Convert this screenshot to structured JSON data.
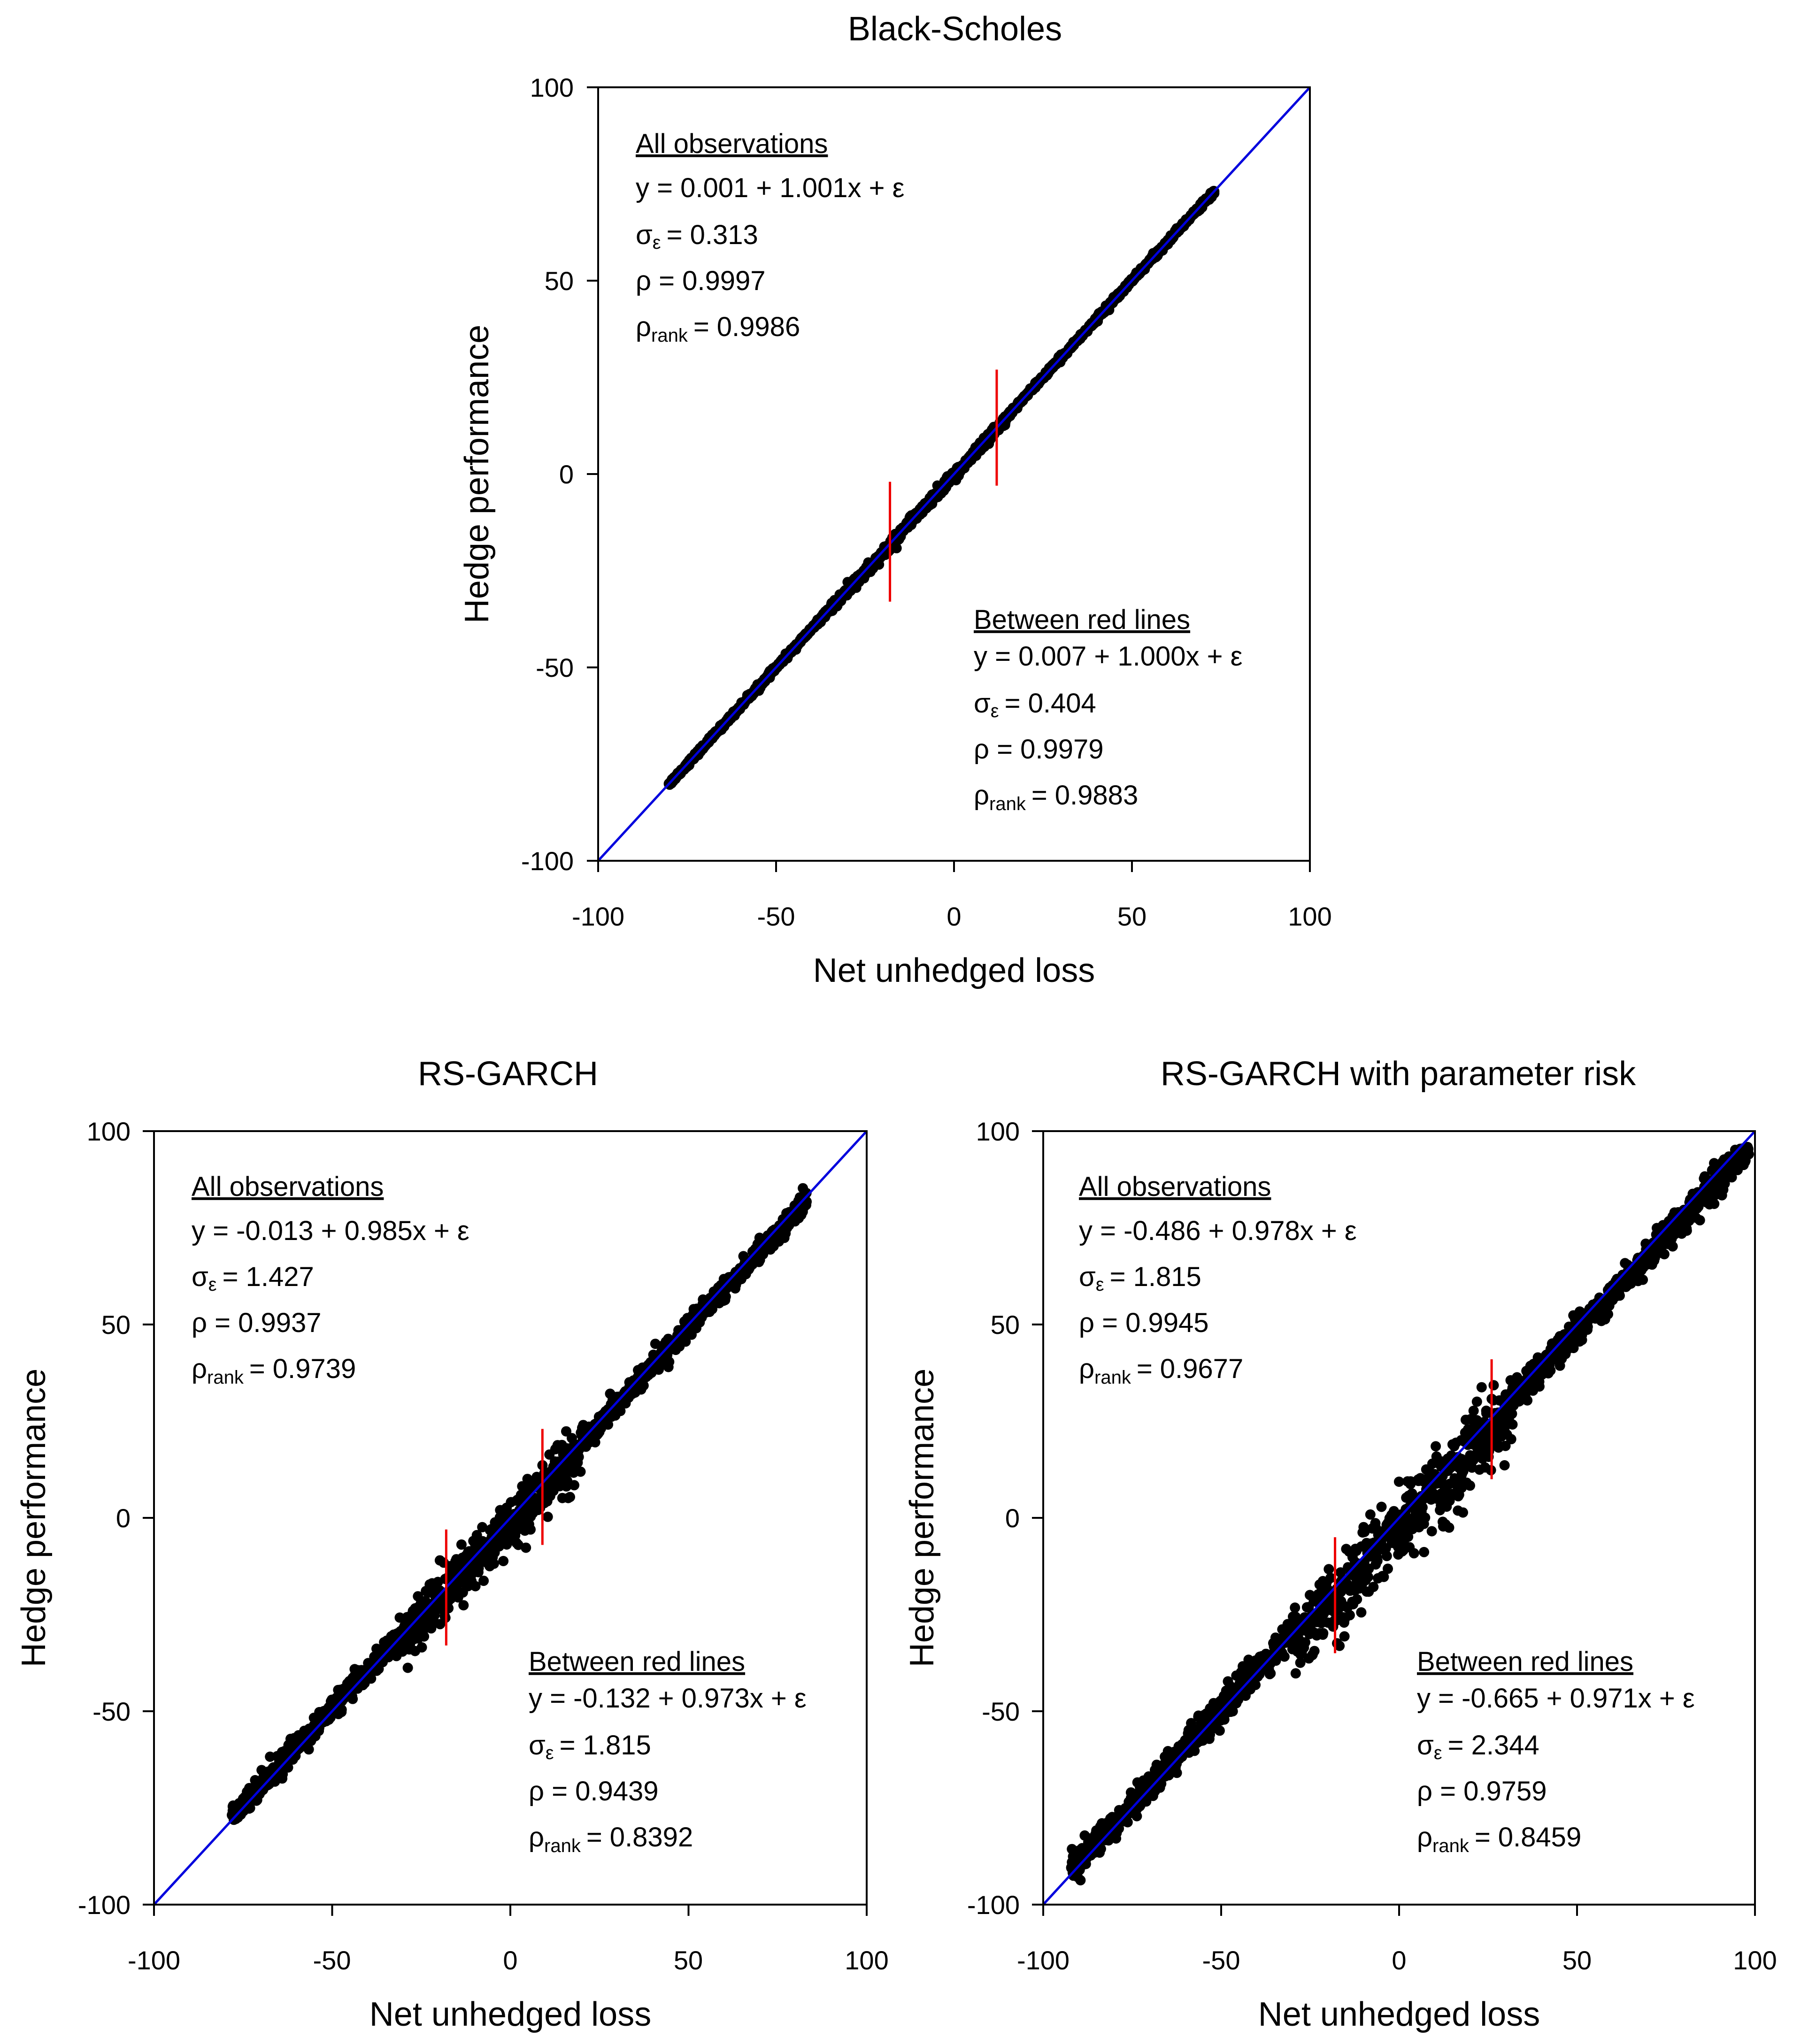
{
  "colors": {
    "diagonal": "#0000dd",
    "redlines": "#ee0000",
    "points": "#000000"
  },
  "chart_data": [
    {
      "type": "scatter",
      "title": "Black-Scholes",
      "xlabel": "Net unhedged loss",
      "ylabel": "Hedge performance",
      "xlim": [
        -100,
        100
      ],
      "ylim": [
        -100,
        100
      ],
      "xticks": [
        "-100",
        "-50",
        "0",
        "50",
        "100"
      ],
      "yticks": [
        "-100",
        "-50",
        "0",
        "50",
        "100"
      ],
      "diagonal": [
        [
          -100,
          -100
        ],
        [
          100,
          100
        ]
      ],
      "cloud": {
        "x_start": -80,
        "x_end": 73,
        "intercept": 0.001,
        "slope": 1.001,
        "band_inner": 0.6,
        "band_outer": 1.2,
        "outer_range": [
          -35,
          15
        ]
      },
      "red_lines": [
        {
          "x": -18,
          "y_range": [
            -33,
            -2
          ]
        },
        {
          "x": 12,
          "y_range": [
            -3,
            27
          ]
        }
      ],
      "annotations": {
        "all": {
          "heading": "All observations",
          "equation": "y = 0.001 + 1.001x + ε",
          "sigma": "σ",
          "sigma_sub": "ε",
          "sigma_value": "= 0.313",
          "rho": "ρ = 0.9997",
          "rho_rank": "ρ",
          "rho_rank_sub": "rank",
          "rho_rank_value": "= 0.9986"
        },
        "between": {
          "heading": "Between red lines",
          "equation": "y = 0.007 + 1.000x + ε",
          "sigma": "σ",
          "sigma_sub": "ε",
          "sigma_value": "= 0.404",
          "rho": "ρ = 0.9979",
          "rho_rank": "ρ",
          "rho_rank_sub": "rank",
          "rho_rank_value": "= 0.9883"
        }
      }
    },
    {
      "type": "scatter",
      "title": "RS-GARCH",
      "xlabel": "Net unhedged loss",
      "ylabel": "Hedge performance",
      "xlim": [
        -100,
        100
      ],
      "ylim": [
        -100,
        100
      ],
      "xticks": [
        "-100",
        "-50",
        "0",
        "50",
        "100"
      ],
      "yticks": [
        "-100",
        "-50",
        "0",
        "50",
        "100"
      ],
      "diagonal": [
        [
          -100,
          -100
        ],
        [
          100,
          100
        ]
      ],
      "cloud": {
        "x_start": -78,
        "x_end": 83,
        "intercept": -0.013,
        "slope": 0.985,
        "band_inner": 2.5,
        "band_outer": 6.0,
        "outer_range": [
          -32,
          20
        ]
      },
      "red_lines": [
        {
          "x": -18,
          "y_range": [
            -33,
            -3
          ]
        },
        {
          "x": 9,
          "y_range": [
            -7,
            23
          ]
        }
      ],
      "annotations": {
        "all": {
          "heading": "All observations",
          "equation": "y = -0.013 + 0.985x + ε",
          "sigma": "σ",
          "sigma_sub": "ε",
          "sigma_value": "= 1.427",
          "rho": "ρ = 0.9937",
          "rho_rank": "ρ",
          "rho_rank_sub": "rank",
          "rho_rank_value": "= 0.9739"
        },
        "between": {
          "heading": "Between red lines",
          "equation": "y = -0.132 + 0.973x + ε",
          "sigma": "σ",
          "sigma_sub": "ε",
          "sigma_value": "= 1.815",
          "rho": "ρ = 0.9439",
          "rho_rank": "ρ",
          "rho_rank_sub": "rank",
          "rho_rank_value": "= 0.8392"
        }
      }
    },
    {
      "type": "scatter",
      "title": "RS-GARCH with parameter risk",
      "xlabel": "Net unhedged loss",
      "ylabel": "Hedge performance",
      "xlim": [
        -100,
        100
      ],
      "ylim": [
        -100,
        100
      ],
      "xticks": [
        "-100",
        "-50",
        "0",
        "50",
        "100"
      ],
      "yticks": [
        "-100",
        "-50",
        "0",
        "50",
        "100"
      ],
      "diagonal": [
        [
          -100,
          -100
        ],
        [
          100,
          100
        ]
      ],
      "cloud": {
        "x_start": -92,
        "x_end": 98,
        "intercept": -0.486,
        "slope": 0.978,
        "band_inner": 3.5,
        "band_outer": 8.5,
        "outer_range": [
          -30,
          32
        ]
      },
      "red_lines": [
        {
          "x": -18,
          "y_range": [
            -35,
            -5
          ]
        },
        {
          "x": 26,
          "y_range": [
            10,
            41
          ]
        }
      ],
      "annotations": {
        "all": {
          "heading": "All observations",
          "equation": "y = -0.486 + 0.978x + ε",
          "sigma": "σ",
          "sigma_sub": "ε",
          "sigma_value": "= 1.815",
          "rho": "ρ = 0.9945",
          "rho_rank": "ρ",
          "rho_rank_sub": "rank",
          "rho_rank_value": "= 0.9677"
        },
        "between": {
          "heading": "Between red lines",
          "equation": "y = -0.665 + 0.971x + ε",
          "sigma": "σ",
          "sigma_sub": "ε",
          "sigma_value": "= 2.344",
          "rho": "ρ = 0.9759",
          "rho_rank": "ρ",
          "rho_rank_sub": "rank",
          "rho_rank_value": "= 0.8459"
        }
      }
    }
  ]
}
